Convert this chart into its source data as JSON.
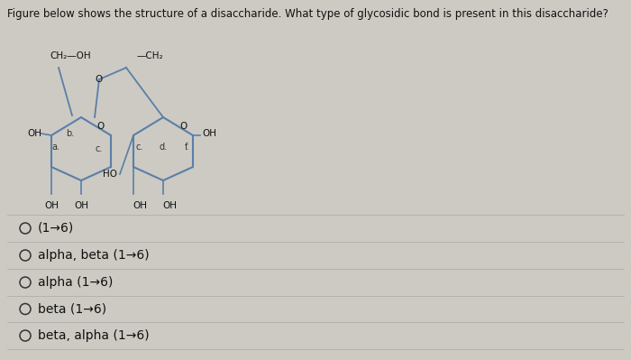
{
  "title": "Figure below shows the structure of a disaccharide. What type of glycosidic bond is present in this disaccharide?",
  "title_fontsize": 8.5,
  "bg_color": "#cccac3",
  "options": [
    "(1→6)",
    "alpha, beta (1→6)",
    "alpha (1→6)",
    "beta (1→6)",
    "beta, alpha (1→6)"
  ],
  "option_fontsize": 10,
  "line_color": "#5a7fa8",
  "text_color": "#111111",
  "label_color": "#333333",
  "divider_color": "#b0aeaa",
  "circle_color": "#333333"
}
